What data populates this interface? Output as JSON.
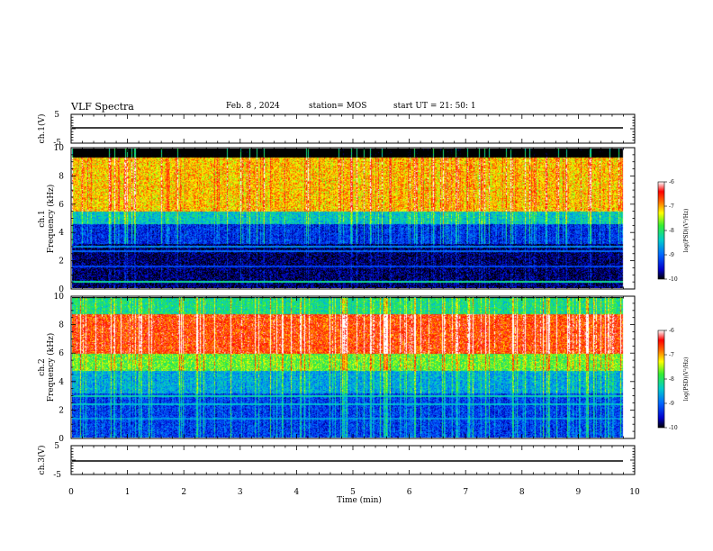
{
  "header": {
    "title": "VLF Spectra",
    "date": "Feb. 8 , 2024",
    "station": "station= MOS",
    "start_ut": "start UT = 21: 50: 1"
  },
  "chart_data": [
    {
      "type": "line",
      "panel": "ch1-waveform",
      "ylabel": "ch.1(V)",
      "ylim": [
        -5,
        5
      ],
      "yticks": [
        "5",
        "-5"
      ],
      "xlim": [
        0,
        10
      ],
      "series": [
        {
          "x": [
            0,
            9.8
          ],
          "y": [
            0,
            0
          ]
        }
      ]
    },
    {
      "type": "heatmap",
      "panel": "ch1-spectrogram",
      "ylabel": "ch.1\nFrequency (kHz)",
      "ylim": [
        0,
        10
      ],
      "yticks": [
        "0",
        "2",
        "4",
        "6",
        "8",
        "10"
      ],
      "xlim": [
        0,
        10
      ],
      "data_extent_min": 9.8,
      "bands_khz": [
        {
          "range": [
            5.5,
            9.4
          ],
          "level": -7.3
        },
        {
          "range": [
            4.6,
            5.5
          ],
          "level": -8.6
        },
        {
          "range": [
            3.2,
            4.6
          ],
          "level": -9.5
        },
        {
          "range": [
            0.0,
            3.2
          ],
          "level": -9.9
        }
      ],
      "lines_khz": [
        {
          "f": 3.0,
          "level": -8.8
        },
        {
          "f": 2.7,
          "level": -9.0
        },
        {
          "f": 1.6,
          "level": -9.2
        },
        {
          "f": 0.5,
          "level": -8.2
        }
      ]
    },
    {
      "type": "heatmap",
      "panel": "ch2-spectrogram",
      "ylabel": "ch.2\nFrequency (kHz)",
      "ylim": [
        0,
        10
      ],
      "yticks": [
        "0",
        "2",
        "4",
        "6",
        "8",
        "10"
      ],
      "xlim": [
        0,
        10
      ],
      "data_extent_min": 9.8,
      "bands_khz": [
        {
          "range": [
            6.0,
            8.8
          ],
          "level": -6.8
        },
        {
          "range": [
            4.8,
            6.0
          ],
          "level": -7.9
        },
        {
          "range": [
            8.8,
            10.0
          ],
          "level": -8.3
        },
        {
          "range": [
            3.2,
            4.8
          ],
          "level": -8.8
        },
        {
          "range": [
            0.0,
            3.2
          ],
          "level": -9.4
        }
      ],
      "lines_khz": [
        {
          "f": 3.0,
          "level": -8.3
        },
        {
          "f": 2.4,
          "level": -8.5
        },
        {
          "f": 1.4,
          "level": -8.7
        }
      ]
    },
    {
      "type": "line",
      "panel": "ch3-waveform",
      "ylabel": "ch.3(V)",
      "ylim": [
        -5,
        5
      ],
      "yticks": [
        "5",
        "-5"
      ],
      "xlabel": "Time (min)",
      "xlim": [
        0,
        10
      ],
      "xticks": [
        "0",
        "1",
        "2",
        "3",
        "4",
        "5",
        "6",
        "7",
        "8",
        "9",
        "10"
      ],
      "series": [
        {
          "x": [
            0,
            9.8
          ],
          "y": [
            0,
            0
          ]
        }
      ]
    }
  ],
  "colorbar": {
    "label": "log(PSD)(V²/Hz)",
    "range": [
      -10,
      -6
    ],
    "ticks": [
      "-6",
      "-7",
      "-8",
      "-9",
      "-10"
    ],
    "colors": [
      "#000000",
      "#0000cc",
      "#0066ff",
      "#00cccc",
      "#33ee33",
      "#ffff00",
      "#ff6600",
      "#ff0000",
      "#ffffff"
    ]
  }
}
